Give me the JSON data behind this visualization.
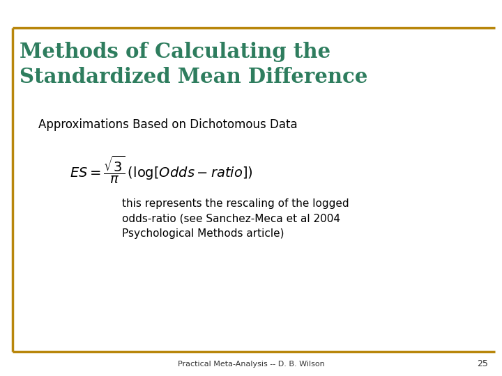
{
  "title_line1": "Methods of Calculating the",
  "title_line2": "Standardized Mean Difference",
  "title_color": "#2E7D5E",
  "subtitle": "Approximations Based on Dichotomous Data",
  "subtitle_color": "#000000",
  "body_text_line1": "this represents the rescaling of the logged",
  "body_text_line2": "odds-ratio (see Sanchez-Meca et al 2004",
  "body_text_line3": "Psychological Methods article)",
  "footer_text": "Practical Meta-Analysis -- D. B. Wilson",
  "footer_page": "25",
  "bg_color": "#FFFFFF",
  "border_color": "#B8860B",
  "title_fontsize": 21,
  "subtitle_fontsize": 12,
  "formula_fontsize": 14,
  "body_fontsize": 11,
  "footer_fontsize": 8
}
